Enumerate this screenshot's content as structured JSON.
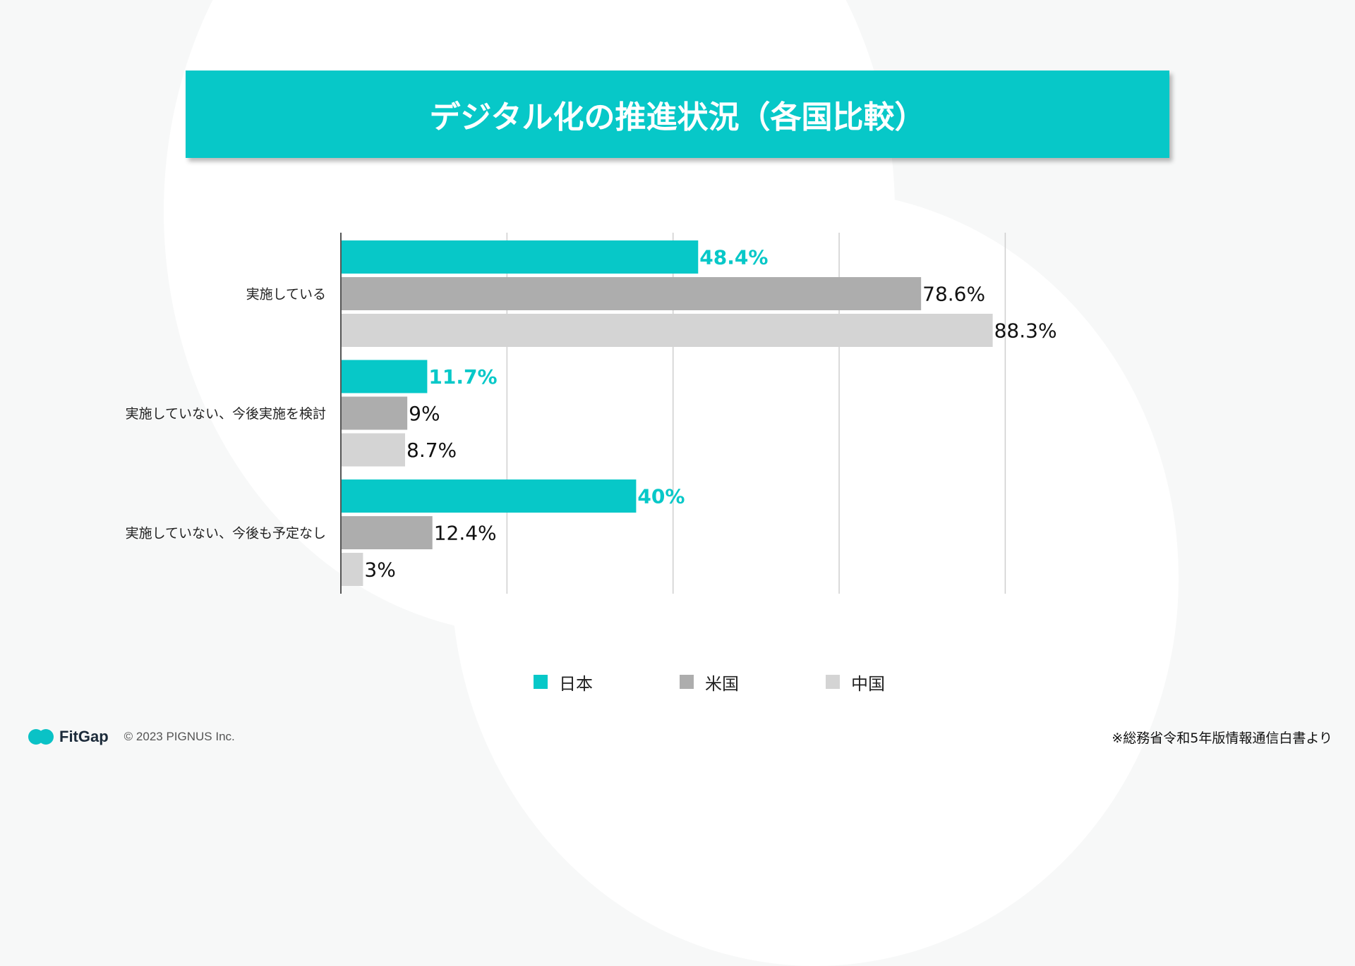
{
  "title": "デジタル化の推進状況（各国比較）",
  "colors": {
    "accent": "#07c8c8",
    "japan": "#07c8c8",
    "usa": "#adadad",
    "china": "#d4d4d4"
  },
  "chart_data": {
    "type": "bar",
    "orientation": "horizontal",
    "title": "デジタル化の推進状況（各国比較）",
    "categories": [
      "実施している",
      "実施していない、今後実施を検討",
      "実施していない、今後も予定なし"
    ],
    "series": [
      {
        "name": "日本",
        "values": [
          48.4,
          11.7,
          40
        ],
        "labels": [
          "48.4%",
          "11.7%",
          "40%"
        ],
        "color": "#07c8c8"
      },
      {
        "name": "米国",
        "values": [
          78.6,
          9,
          12.4
        ],
        "labels": [
          "78.6%",
          "9%",
          "12.4%"
        ],
        "color": "#adadad"
      },
      {
        "name": "中国",
        "values": [
          88.3,
          8.7,
          3
        ],
        "labels": [
          "88.3%",
          "8.7%",
          "3%"
        ],
        "color": "#d4d4d4"
      }
    ],
    "xlim": [
      0,
      100
    ],
    "gridlines": [
      0,
      22.5,
      45,
      67.5,
      90
    ],
    "grid": true,
    "legend": "bottom"
  },
  "legend": [
    {
      "label": "日本",
      "color": "#07c8c8"
    },
    {
      "label": "米国",
      "color": "#adadad"
    },
    {
      "label": "中国",
      "color": "#d4d4d4"
    }
  ],
  "footer": {
    "brand": "FitGap",
    "copyright": "© 2023 PIGNUS Inc.",
    "source": "※総務省令和5年版情報通信白書より"
  }
}
